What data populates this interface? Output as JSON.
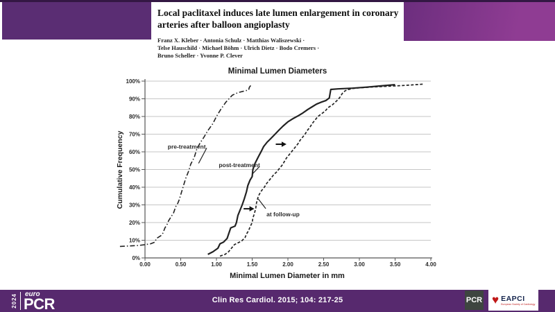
{
  "paper": {
    "title_line1": "Local paclitaxel induces late lumen enlargement in coronary",
    "title_line2": "arteries after balloon angioplasty",
    "authors_line1": "Franz X. Kleber · Antonia Schulz · Matthias Waliszewski ·",
    "authors_line2": "Telse Hauschild · Michael Böhm · Ulrich Dietz · Bodo Cremers ·",
    "authors_line3": "Bruno Scheller · Yvonne P. Clever"
  },
  "footer": {
    "citation": "Clin Res Cardiol. 2015; 104: 217-25",
    "europcr_year": "2024",
    "europcr_euro": "euro",
    "europcr_pcr": "PCR",
    "pcr_logo": "PCR",
    "eapci_name": "EAPCI",
    "eapci_sub": "European Society of Cardiology",
    "heart_icon": "♥"
  },
  "colors": {
    "band_left": "#5a2d73",
    "band_right": "#8f3c93",
    "top_strip": "#331743",
    "footer_bar": "#57296e",
    "pcr_box": "#3e4540",
    "eapci_red": "#c01818",
    "curve": "#222222",
    "gridline": "#c6c6c6"
  },
  "chart_data": {
    "type": "line",
    "title": "Minimal Lumen Diameters",
    "xlabel": "Minimal Lumen Diameter in mm",
    "ylabel": "Cumulative Frequency",
    "xlim": [
      0,
      4
    ],
    "ylim": [
      0,
      100
    ],
    "grid": "horizontal",
    "legend_position": "inline-labels",
    "xtick_labels": [
      "0.00",
      "0.50",
      "1.00",
      "1.50",
      "2.00",
      "2.50",
      "3.00",
      "3.50",
      "4.00"
    ],
    "xtick_values": [
      0,
      0.5,
      1.0,
      1.5,
      2.0,
      2.5,
      3.0,
      3.5,
      4.0
    ],
    "ytick_labels": [
      "0%",
      "10%",
      "20%",
      "30%",
      "40%",
      "50%",
      "60%",
      "70%",
      "80%",
      "90%",
      "100%"
    ],
    "ytick_values": [
      0,
      10,
      20,
      30,
      40,
      50,
      60,
      70,
      80,
      90,
      100
    ],
    "series": [
      {
        "name": "pre-treatment",
        "style": "dashdot",
        "width": 1.6,
        "points": [
          [
            -0.35,
            6.5
          ],
          [
            -0.1,
            7
          ],
          [
            0.0,
            7.5
          ],
          [
            0.08,
            8
          ],
          [
            0.14,
            9
          ],
          [
            0.16,
            11
          ],
          [
            0.22,
            12.5
          ],
          [
            0.25,
            14
          ],
          [
            0.28,
            17
          ],
          [
            0.31,
            19
          ],
          [
            0.33,
            21
          ],
          [
            0.36,
            23
          ],
          [
            0.4,
            25.5
          ],
          [
            0.43,
            29
          ],
          [
            0.46,
            31
          ],
          [
            0.48,
            33
          ],
          [
            0.51,
            37
          ],
          [
            0.54,
            41
          ],
          [
            0.57,
            45
          ],
          [
            0.61,
            49
          ],
          [
            0.64,
            53
          ],
          [
            0.69,
            57
          ],
          [
            0.72,
            61
          ],
          [
            0.77,
            65
          ],
          [
            0.82,
            68
          ],
          [
            0.88,
            72
          ],
          [
            0.95,
            76
          ],
          [
            1.0,
            80
          ],
          [
            1.06,
            84
          ],
          [
            1.13,
            88
          ],
          [
            1.22,
            92
          ],
          [
            1.3,
            93.5
          ],
          [
            1.4,
            94.5
          ],
          [
            1.45,
            95
          ],
          [
            1.46,
            96.5
          ],
          [
            1.48,
            97.5
          ]
        ]
      },
      {
        "name": "post-treatment",
        "style": "solid",
        "width": 2.2,
        "points": [
          [
            0.88,
            2
          ],
          [
            0.95,
            3.5
          ],
          [
            1.02,
            5.5
          ],
          [
            1.05,
            8
          ],
          [
            1.1,
            9
          ],
          [
            1.15,
            11
          ],
          [
            1.17,
            13.5
          ],
          [
            1.2,
            17
          ],
          [
            1.26,
            18
          ],
          [
            1.28,
            20
          ],
          [
            1.3,
            24
          ],
          [
            1.33,
            27
          ],
          [
            1.36,
            30
          ],
          [
            1.39,
            33.5
          ],
          [
            1.42,
            37.5
          ],
          [
            1.44,
            41
          ],
          [
            1.47,
            44
          ],
          [
            1.5,
            46
          ],
          [
            1.51,
            50
          ],
          [
            1.54,
            53.5
          ],
          [
            1.59,
            57.5
          ],
          [
            1.63,
            60.5
          ],
          [
            1.66,
            63
          ],
          [
            1.71,
            65.5
          ],
          [
            1.76,
            67.5
          ],
          [
            1.82,
            70
          ],
          [
            1.88,
            72.5
          ],
          [
            1.93,
            74.5
          ],
          [
            2.0,
            77
          ],
          [
            2.08,
            79
          ],
          [
            2.15,
            80.5
          ],
          [
            2.21,
            82
          ],
          [
            2.28,
            84
          ],
          [
            2.34,
            85.5
          ],
          [
            2.4,
            87
          ],
          [
            2.46,
            88
          ],
          [
            2.53,
            89
          ],
          [
            2.58,
            90.5
          ],
          [
            2.6,
            95.3
          ],
          [
            2.7,
            95.6
          ],
          [
            2.9,
            96
          ],
          [
            3.1,
            96.6
          ],
          [
            3.3,
            97.3
          ],
          [
            3.5,
            98
          ]
        ]
      },
      {
        "name": "at follow-up",
        "style": "dashed",
        "width": 1.7,
        "points": [
          [
            1.05,
            1
          ],
          [
            1.12,
            2
          ],
          [
            1.17,
            3.5
          ],
          [
            1.2,
            5
          ],
          [
            1.25,
            7.5
          ],
          [
            1.3,
            8.5
          ],
          [
            1.35,
            9.5
          ],
          [
            1.4,
            11.5
          ],
          [
            1.42,
            13.5
          ],
          [
            1.45,
            15.5
          ],
          [
            1.47,
            17.5
          ],
          [
            1.5,
            20
          ],
          [
            1.51,
            22.5
          ],
          [
            1.53,
            25
          ],
          [
            1.55,
            28
          ],
          [
            1.56,
            31
          ],
          [
            1.58,
            34
          ],
          [
            1.6,
            36
          ],
          [
            1.63,
            38
          ],
          [
            1.67,
            40
          ],
          [
            1.7,
            42
          ],
          [
            1.73,
            43.5
          ],
          [
            1.76,
            45
          ],
          [
            1.8,
            47
          ],
          [
            1.84,
            48.5
          ],
          [
            1.88,
            50.5
          ],
          [
            1.92,
            52.5
          ],
          [
            1.95,
            54.5
          ],
          [
            1.98,
            56.5
          ],
          [
            2.02,
            58.5
          ],
          [
            2.06,
            60.5
          ],
          [
            2.1,
            62.5
          ],
          [
            2.14,
            64.5
          ],
          [
            2.17,
            66.5
          ],
          [
            2.2,
            68
          ],
          [
            2.24,
            70
          ],
          [
            2.27,
            72
          ],
          [
            2.31,
            74
          ],
          [
            2.34,
            76
          ],
          [
            2.38,
            78
          ],
          [
            2.42,
            80
          ],
          [
            2.47,
            81.5
          ],
          [
            2.52,
            83
          ],
          [
            2.56,
            85
          ],
          [
            2.62,
            86.5
          ],
          [
            2.66,
            88
          ],
          [
            2.7,
            89.5
          ],
          [
            2.73,
            91
          ],
          [
            2.76,
            93
          ],
          [
            2.8,
            94.5
          ],
          [
            2.85,
            95.3
          ],
          [
            2.9,
            95.8
          ],
          [
            3.0,
            96.2
          ],
          [
            3.2,
            96.7
          ],
          [
            3.4,
            97.1
          ],
          [
            3.6,
            97.5
          ],
          [
            3.75,
            97.9
          ],
          [
            3.9,
            98.3
          ]
        ]
      }
    ],
    "annotations": {
      "labels": [
        {
          "text": "pre-treatment",
          "x": 0.85,
          "y": 63.0,
          "anchor": "end",
          "leader": [
            0.864,
            62.2,
            0.75,
            53.5
          ]
        },
        {
          "text": "post-treatment",
          "x": 1.61,
          "y": 52.5,
          "anchor": "end",
          "leader": [
            1.6,
            51.6,
            1.5,
            47.3
          ]
        },
        {
          "text": "at follow-up",
          "x": 1.7,
          "y": 24.8,
          "anchor": "start",
          "leader": [
            1.69,
            27.9,
            1.585,
            33.4
          ]
        }
      ],
      "arrows": [
        {
          "from": [
            1.38,
            27.8
          ],
          "to": [
            1.53,
            27.8
          ]
        },
        {
          "from": [
            1.83,
            64.3
          ],
          "to": [
            1.98,
            64.3
          ]
        }
      ]
    }
  }
}
